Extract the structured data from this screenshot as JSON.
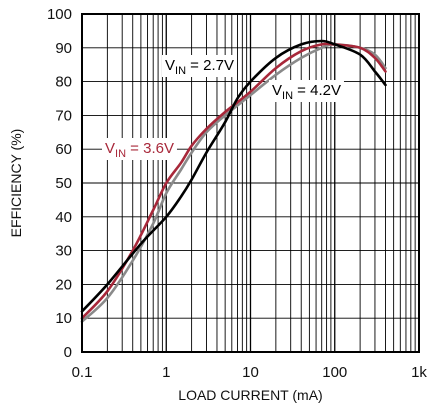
{
  "chart_data": {
    "type": "line",
    "xscale": "log",
    "xlim": [
      0.1,
      1000
    ],
    "ylim": [
      0,
      100
    ],
    "grid": true,
    "xlabel": "LOAD CURRENT (mA)",
    "ylabel": "EFFICIENCY (%)",
    "x_tick_labels": [
      "0.1",
      "1",
      "10",
      "100",
      "1k"
    ],
    "y_tick_labels": [
      "0",
      "10",
      "20",
      "30",
      "40",
      "50",
      "60",
      "70",
      "80",
      "90",
      "100"
    ],
    "series": [
      {
        "label_prefix": "V",
        "label_sub": "IN",
        "label_suffix": " = 2.7V",
        "color": "#000000",
        "points": [
          [
            0.1,
            12
          ],
          [
            0.2,
            20
          ],
          [
            0.5,
            32
          ],
          [
            1,
            40
          ],
          [
            1.5,
            46
          ],
          [
            2,
            51
          ],
          [
            3,
            59
          ],
          [
            5,
            68
          ],
          [
            7,
            75
          ],
          [
            10,
            80
          ],
          [
            20,
            87
          ],
          [
            40,
            91
          ],
          [
            70,
            92
          ],
          [
            100,
            91
          ],
          [
            200,
            88
          ],
          [
            300,
            83
          ],
          [
            400,
            79
          ]
        ]
      },
      {
        "label_prefix": "V",
        "label_sub": "IN",
        "label_suffix": " = 3.6V",
        "color": "#a8283a",
        "points": [
          [
            0.1,
            10
          ],
          [
            0.2,
            18
          ],
          [
            0.4,
            30
          ],
          [
            0.7,
            42
          ],
          [
            1,
            50
          ],
          [
            1.5,
            56
          ],
          [
            2,
            61
          ],
          [
            3,
            66
          ],
          [
            5,
            71
          ],
          [
            10,
            77
          ],
          [
            20,
            84
          ],
          [
            40,
            89
          ],
          [
            70,
            91
          ],
          [
            100,
            91
          ],
          [
            200,
            90
          ],
          [
            300,
            87
          ],
          [
            400,
            83
          ]
        ]
      },
      {
        "label_prefix": "V",
        "label_sub": "IN",
        "label_suffix": " = 4.2V",
        "color": "#8a8a8a",
        "points": [
          [
            0.1,
            9
          ],
          [
            0.2,
            16
          ],
          [
            0.4,
            27
          ],
          [
            0.7,
            38
          ],
          [
            1,
            47
          ],
          [
            1.5,
            54
          ],
          [
            2,
            59
          ],
          [
            3,
            65
          ],
          [
            5,
            70
          ],
          [
            10,
            76
          ],
          [
            20,
            82
          ],
          [
            40,
            87
          ],
          [
            70,
            90
          ],
          [
            100,
            91
          ],
          [
            200,
            90
          ],
          [
            300,
            88
          ],
          [
            400,
            84
          ]
        ]
      }
    ]
  }
}
